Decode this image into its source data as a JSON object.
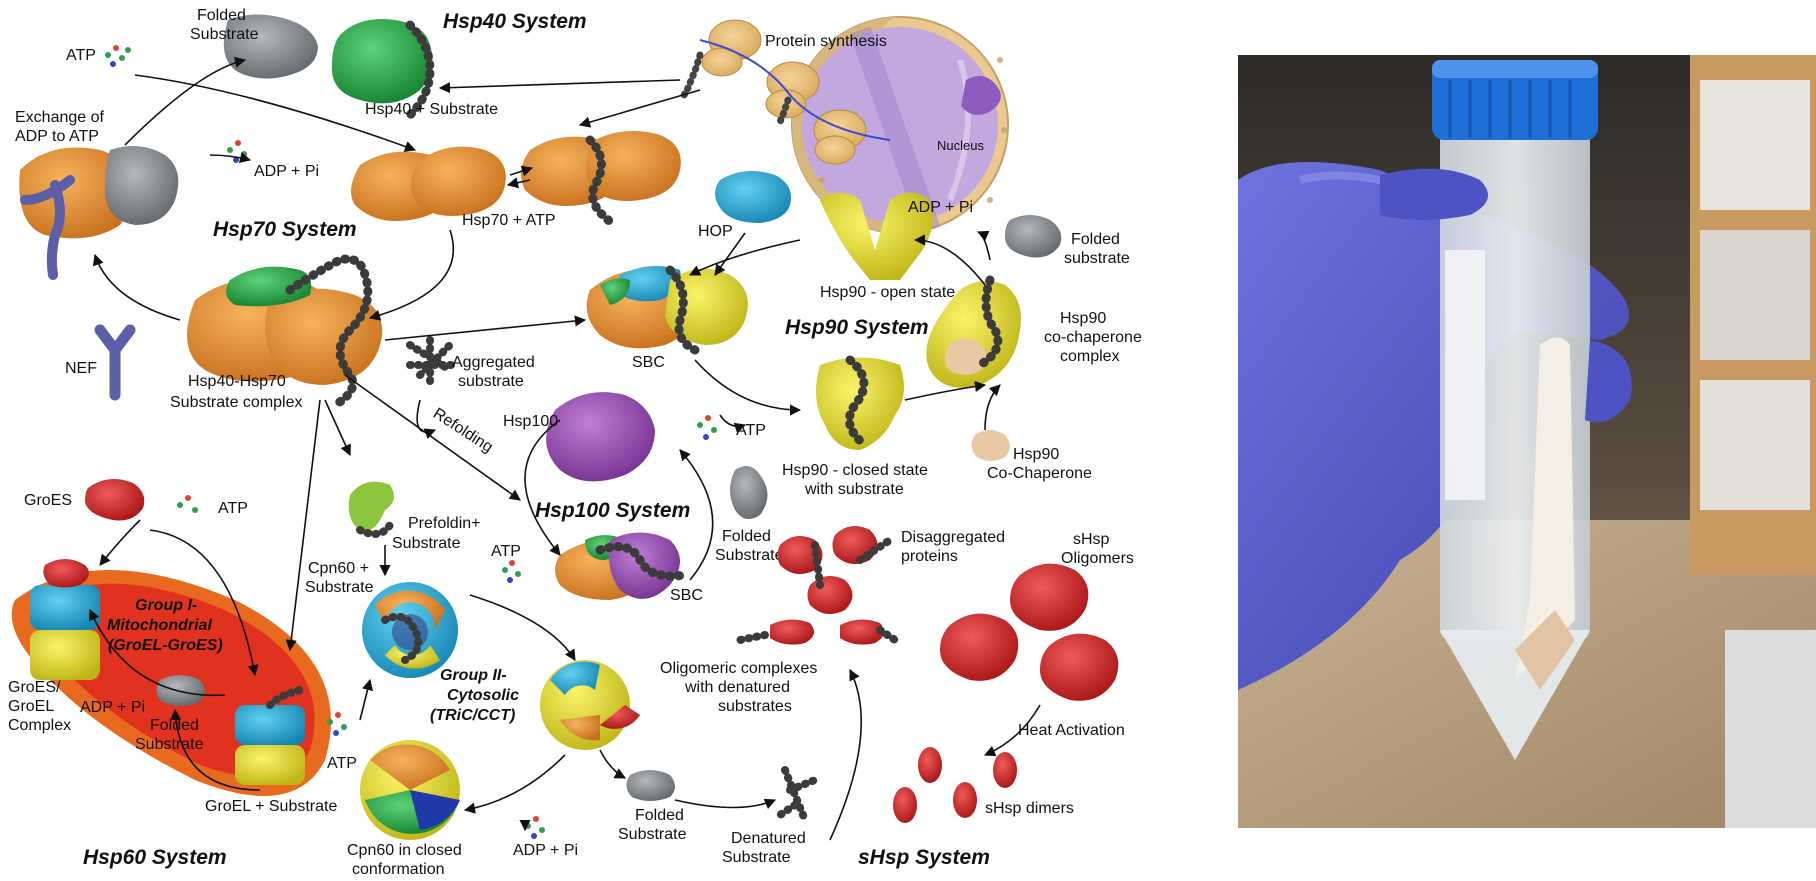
{
  "systems": {
    "hsp40": "Hsp40 System",
    "hsp70": "Hsp70 System",
    "hsp90": "Hsp90 System",
    "hsp100": "Hsp100 System",
    "hsp60": "Hsp60 System",
    "shsp": "sHsp System"
  },
  "labels": {
    "folded_substrate_top": [
      "Folded",
      "Substrate"
    ],
    "atp_top": "ATP",
    "exchange": [
      "Exchange of",
      "ADP to ATP"
    ],
    "adp_pi_left": "ADP + Pi",
    "hsp40_substrate": "Hsp40 + Substrate",
    "protein_synthesis": "Protein synthesis",
    "nucleus": "Nucleus",
    "hsp70_atp": "Hsp70 + ATP",
    "nef": "NEF",
    "hsp40_hsp70": [
      "Hsp40-Hsp70",
      "Substrate complex"
    ],
    "hop": "HOP",
    "adp_pi_hsp90": "ADP + Pi",
    "folded_substrate_hsp90": [
      "Folded",
      "substrate"
    ],
    "hsp90_open": "Hsp90 - open state",
    "sbc_hsp90": "SBC",
    "hsp90_cochaperone_complex": [
      "Hsp90",
      "co-chaperone",
      "complex"
    ],
    "aggregated": [
      "Aggregated",
      "substrate"
    ],
    "refolding": "Refolding",
    "hsp100": "Hsp100",
    "atp_hsp90": "ATP",
    "hsp90_closed": [
      "Hsp90 - closed state",
      "with substrate"
    ],
    "hsp90_cochaperone": [
      "Hsp90",
      "Co-Chaperone"
    ],
    "groes": "GroES",
    "atp_groes": "ATP",
    "prefoldin": [
      "Prefoldin+",
      "Substrate"
    ],
    "cpn60_substrate": [
      "Cpn60 +",
      "Substrate"
    ],
    "folded_substrate_hsp100": [
      "Folded",
      "Substrate"
    ],
    "atp_hsp100": "ATP",
    "sbc_hsp100": "SBC",
    "disaggregated": [
      "Disaggregated",
      "proteins"
    ],
    "shsp_oligomers": [
      "sHsp",
      "Oligomers"
    ],
    "group1": [
      "Group I-",
      "Mitochondrial",
      "(GroEL-GroES)"
    ],
    "group2": [
      "Group II-",
      "Cytosolic",
      "(TRiC/CCT)"
    ],
    "groes_groel_complex": [
      "GroES/",
      "GroEL",
      "Complex"
    ],
    "adp_pi_groel": "ADP + Pi",
    "folded_substrate_groel": [
      "Folded",
      "Substrate"
    ],
    "atp_cpn60": "ATP",
    "oligomeric": [
      "Oligomeric complexes",
      "with denatured",
      "substrates"
    ],
    "heat_activation": "Heat Activation",
    "groel_substrate": "GroEL + Substrate",
    "shsp_dimers": "sHsp dimers",
    "cpn60_closed": [
      "Cpn60 in closed",
      "conformation"
    ],
    "adp_pi_bottom": "ADP + Pi",
    "folded_substrate_bottom": [
      "Folded",
      "Substrate"
    ],
    "denatured_substrate": [
      "Denatured",
      "Substrate"
    ]
  },
  "colors": {
    "hsp70": "#e8902f",
    "hsp40": "#22a845",
    "hsp90": "#e5df2a",
    "hop": "#2cb4de",
    "hsp100": "#9b4fb5",
    "shsp": "#d42b2b",
    "substrate": "#8a8d92",
    "nef": "#6366a8",
    "prefoldin": "#8cc63f",
    "mitochondrion_outer": "#e86a1e",
    "mitochondrion_inner": "#e0321e",
    "nucleus": "#b79bd8",
    "glove": "#5a5fd0",
    "tube_cap": "#1f6fd6"
  }
}
